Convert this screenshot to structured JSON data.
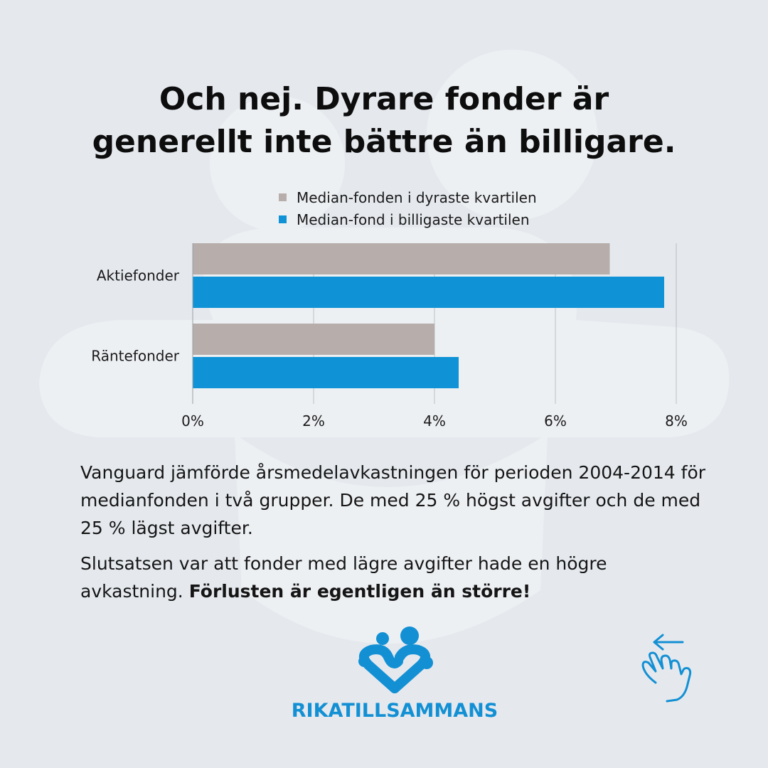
{
  "colors": {
    "background": "#e5e9ee",
    "expensive": "#b7aeab",
    "cheap": "#0f93d6",
    "brand": "#1390d4"
  },
  "title_line1": "Och nej. Dyrare fonder är",
  "title_line2": "generellt inte bättre än billigare.",
  "chart_data": {
    "type": "bar",
    "orientation": "horizontal",
    "title": "",
    "categories": [
      "Aktiefonder",
      "Räntefonder"
    ],
    "series": [
      {
        "name": "Median-fonden i dyraste kvartilen",
        "values": [
          6.9,
          4.0
        ]
      },
      {
        "name": "Median-fond i billigaste kvartilen",
        "values": [
          7.8,
          4.4
        ]
      }
    ],
    "xlabel": "",
    "ylabel": "",
    "xlim": [
      0,
      8
    ],
    "ticks": [
      "0%",
      "2%",
      "4%",
      "6%",
      "8%"
    ],
    "tick_values": [
      0,
      2,
      4,
      6,
      8
    ],
    "grid": true,
    "legend_position": "top"
  },
  "body": {
    "para1": "Vanguard jämförde årsmedelavkastningen för perioden 2004-2014 för medianfonden i två grupper. De med 25 % högst avgifter och de med 25 % lägst avgifter.",
    "para2_plain": "Slutsatsen var att fonder med lägre avgifter hade en högre avkastning. ",
    "para2_bold": "Förlusten är egentligen än större!"
  },
  "logo": {
    "text": "RIKATILLSAMMANS",
    "icon": "people-heart-icon"
  },
  "swipe": {
    "icon": "swipe-left-hand-icon"
  }
}
